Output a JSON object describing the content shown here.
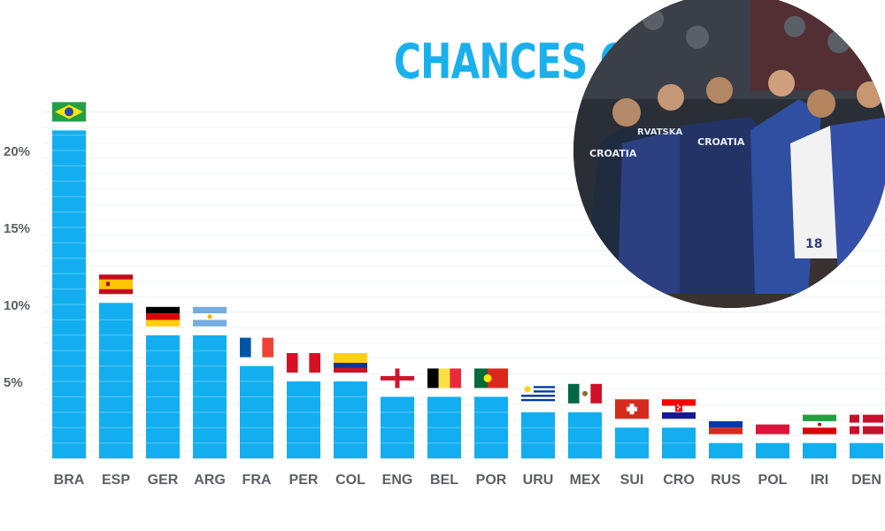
{
  "chart_data": {
    "type": "bar",
    "title": "CHANCES O",
    "categories": [
      "BRA",
      "ESP",
      "GER",
      "ARG",
      "FRA",
      "PER",
      "COL",
      "ENG",
      "BEL",
      "POR",
      "URU",
      "MEX",
      "SUI",
      "CRO",
      "RUS",
      "POL",
      "IRI",
      "DEN"
    ],
    "values": [
      21.3,
      10.1,
      8.0,
      8.0,
      6.0,
      5.0,
      5.0,
      4.0,
      4.0,
      4.0,
      3.0,
      3.0,
      2.0,
      2.0,
      1.0,
      1.0,
      1.0,
      1.0
    ],
    "yticks": [
      "5%",
      "10%",
      "15%",
      "20%"
    ],
    "ylim": [
      0,
      22
    ],
    "grid": true,
    "bar_color": "#12aef0",
    "flags": [
      "brazil",
      "spain",
      "germany",
      "argentina",
      "france",
      "peru",
      "colombia",
      "england",
      "belgium",
      "portugal",
      "uruguay",
      "mexico",
      "switzerland",
      "croatia",
      "russia",
      "poland",
      "iran",
      "denmark"
    ]
  },
  "photo": {
    "shirt_text_1": "CROATIA",
    "shirt_text_2": "CROATIA",
    "shirt_text_3": "RVATSKA",
    "player_number": "18",
    "accent_color": "#2f3d7a"
  }
}
